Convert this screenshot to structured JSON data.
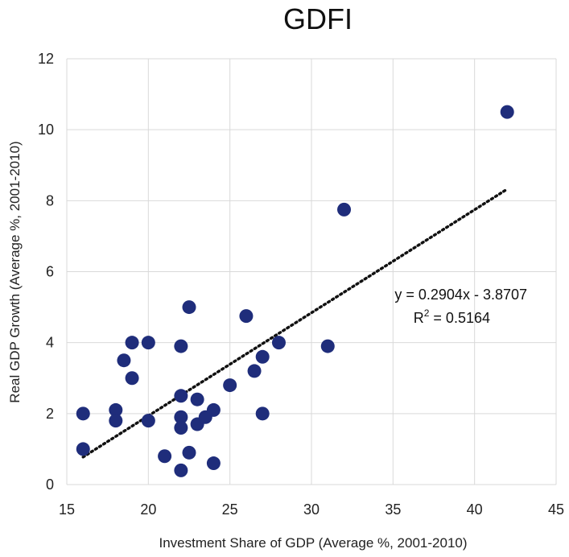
{
  "chart_data": {
    "type": "scatter",
    "title": "GDFI",
    "xlabel": "Investment Share of GDP (Average %, 2001-2010)",
    "ylabel": "Real GDP Growth (Average %, 2001-2010)",
    "xlim": [
      15,
      45
    ],
    "ylim": [
      0,
      12
    ],
    "x_ticks": [
      15,
      20,
      25,
      30,
      35,
      40,
      45
    ],
    "y_ticks": [
      0,
      2,
      4,
      6,
      8,
      10,
      12
    ],
    "grid": true,
    "marker_color": "#1f2d7b",
    "trendline_color": "#111111",
    "points": [
      {
        "x": 16,
        "y": 2.0
      },
      {
        "x": 16,
        "y": 1.0
      },
      {
        "x": 18,
        "y": 2.1
      },
      {
        "x": 18,
        "y": 1.8
      },
      {
        "x": 18.5,
        "y": 3.5
      },
      {
        "x": 19,
        "y": 4.0
      },
      {
        "x": 19,
        "y": 3.0
      },
      {
        "x": 20,
        "y": 4.0
      },
      {
        "x": 20,
        "y": 1.8
      },
      {
        "x": 21,
        "y": 0.8
      },
      {
        "x": 22,
        "y": 3.9
      },
      {
        "x": 22,
        "y": 2.5
      },
      {
        "x": 22,
        "y": 1.9
      },
      {
        "x": 22,
        "y": 1.6
      },
      {
        "x": 22,
        "y": 0.4
      },
      {
        "x": 22.5,
        "y": 5.0
      },
      {
        "x": 22.5,
        "y": 0.9
      },
      {
        "x": 23,
        "y": 2.4
      },
      {
        "x": 23,
        "y": 1.7
      },
      {
        "x": 23.5,
        "y": 1.9
      },
      {
        "x": 24,
        "y": 2.1
      },
      {
        "x": 24,
        "y": 0.6
      },
      {
        "x": 25,
        "y": 2.8
      },
      {
        "x": 26,
        "y": 4.75
      },
      {
        "x": 26.5,
        "y": 3.2
      },
      {
        "x": 27,
        "y": 3.6
      },
      {
        "x": 27,
        "y": 2.0
      },
      {
        "x": 28,
        "y": 4.0
      },
      {
        "x": 31,
        "y": 3.9
      },
      {
        "x": 32,
        "y": 7.75
      },
      {
        "x": 42,
        "y": 10.5
      }
    ],
    "trendline": {
      "slope": 0.2904,
      "intercept": -3.8707,
      "x_range": [
        16,
        42
      ],
      "equation_text": "y = 0.2904x - 3.8707",
      "r2_text": "R",
      "r2_sup": "2",
      "r2_value_text": " = 0.5164"
    }
  }
}
